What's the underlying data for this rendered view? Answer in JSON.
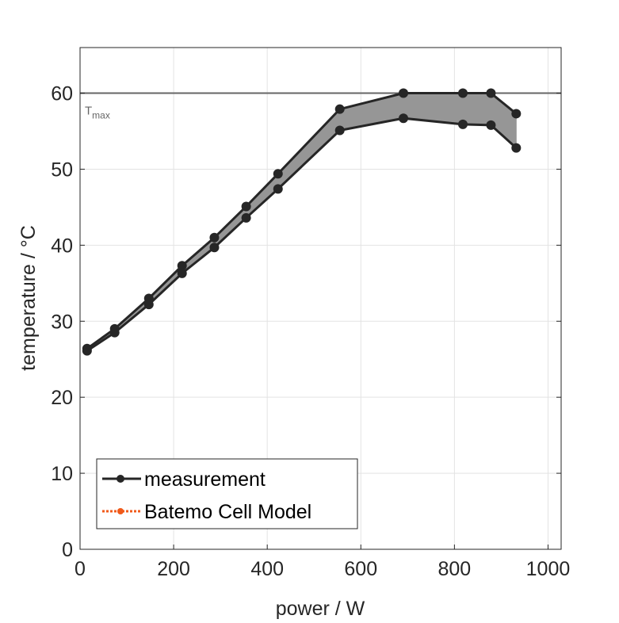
{
  "chart_data": {
    "type": "line",
    "xlabel": "power / W",
    "ylabel": "temperature / °C",
    "xlim": [
      0,
      1028
    ],
    "ylim": [
      0,
      66
    ],
    "xticks": [
      0,
      200,
      400,
      600,
      800,
      1000
    ],
    "yticks": [
      0,
      10,
      20,
      30,
      40,
      50,
      60
    ],
    "grid": true,
    "legend_position": "bottom-left",
    "reference_line": {
      "y": 60,
      "label": "T",
      "label_sub": "max",
      "color": "#666666"
    },
    "x": [
      15,
      74,
      147,
      218,
      287,
      355,
      423,
      555,
      691,
      818,
      878,
      932
    ],
    "series": [
      {
        "name": "measurement",
        "color": "#262626",
        "upper": [
          26.4,
          29.0,
          33.0,
          37.3,
          41.0,
          45.1,
          49.4,
          57.9,
          60.0,
          60.0,
          60.0,
          57.3
        ],
        "lower": [
          26.1,
          28.5,
          32.2,
          36.3,
          39.7,
          43.6,
          47.4,
          55.1,
          56.7,
          55.9,
          55.8,
          52.8
        ],
        "band_color": "#969696"
      },
      {
        "name": "Batemo Cell Model",
        "color": "#f05a1a",
        "upper": [],
        "lower": []
      }
    ]
  }
}
